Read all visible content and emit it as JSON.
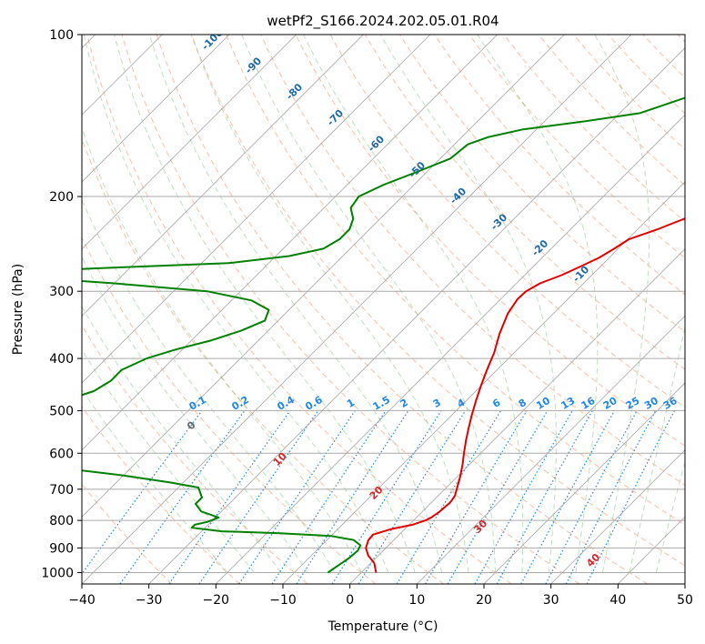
{
  "chart_data": {
    "type": "line",
    "chart_kind": "skew-t log-p",
    "title": "wetPf2_S166.2024.202.05.01.R04",
    "xlabel": "Temperature (°C)",
    "ylabel": "Pressure (hPa)",
    "xlim": [
      -40,
      50
    ],
    "ylim": [
      1050,
      100
    ],
    "y_scale": "log",
    "grid": true,
    "x_ticks": [
      "−40",
      "−30",
      "−20",
      "−10",
      "0",
      "10",
      "20",
      "30",
      "40",
      "50"
    ],
    "y_ticks": [
      "100",
      "200",
      "300",
      "400",
      "500",
      "600",
      "700",
      "800",
      "900",
      "1000"
    ],
    "series": [
      {
        "name": "",
        "color": "#e00000",
        "points": [
          [
            2.2,
            1000
          ],
          [
            0.5,
            960
          ],
          [
            -1.5,
            930
          ],
          [
            -3.0,
            900
          ],
          [
            -3.8,
            870
          ],
          [
            -3.9,
            850
          ],
          [
            -2.0,
            830
          ],
          [
            0.5,
            815
          ],
          [
            1.8,
            800
          ],
          [
            2.2,
            790
          ],
          [
            2.6,
            770
          ],
          [
            2.8,
            740
          ],
          [
            2.5,
            720
          ],
          [
            1.8,
            700
          ],
          [
            0.5,
            665
          ],
          [
            -1.0,
            630
          ],
          [
            -2.5,
            600
          ],
          [
            -4.0,
            570
          ],
          [
            -5.5,
            540
          ],
          [
            -7.0,
            510
          ],
          [
            -8.5,
            480
          ],
          [
            -10.0,
            450
          ],
          [
            -11.5,
            420
          ],
          [
            -13.0,
            390
          ],
          [
            -15.0,
            360
          ],
          [
            -16.8,
            330
          ],
          [
            -17.5,
            310
          ],
          [
            -17.4,
            300
          ],
          [
            -16.5,
            290
          ],
          [
            -14.5,
            280
          ],
          [
            -13.0,
            270
          ],
          [
            -11.5,
            260
          ],
          [
            -10.6,
            250
          ],
          [
            -9.8,
            240
          ],
          [
            -7.0,
            230
          ],
          [
            -4.6,
            220
          ],
          [
            -2.2,
            210
          ],
          [
            0.0,
            200
          ],
          [
            1.5,
            190
          ],
          [
            3.2,
            180
          ],
          [
            5.2,
            170
          ],
          [
            7.6,
            160
          ],
          [
            10.0,
            150
          ],
          [
            12.0,
            140
          ],
          [
            13.5,
            130
          ],
          [
            14.8,
            120
          ],
          [
            16.2,
            110
          ],
          [
            17.8,
            100
          ]
        ]
      },
      {
        "name": "",
        "color": "#008000",
        "points": [
          [
            -5.0,
            1000
          ],
          [
            -4.5,
            970
          ],
          [
            -4.0,
            940
          ],
          [
            -3.8,
            910
          ],
          [
            -4.2,
            890
          ],
          [
            -6.0,
            870
          ],
          [
            -10.0,
            855
          ],
          [
            -18.0,
            845
          ],
          [
            -27.0,
            838
          ],
          [
            -32.0,
            825
          ],
          [
            -32.0,
            815
          ],
          [
            -30.5,
            805
          ],
          [
            -29.5,
            790
          ],
          [
            -33.0,
            770
          ],
          [
            -35.0,
            745
          ],
          [
            -35.0,
            725
          ],
          [
            -36.0,
            710
          ],
          [
            -37.0,
            695
          ],
          [
            -42.0,
            680
          ],
          [
            -50.0,
            660
          ],
          [
            -60.0,
            640
          ],
          [
            -75.0,
            620
          ],
          [
            -95.0,
            590
          ],
          [
            -110.0,
            570
          ],
          [
            -100.0,
            560
          ],
          [
            -89.0,
            550
          ],
          [
            -83.0,
            530
          ],
          [
            -77.0,
            505
          ],
          [
            -70.0,
            480
          ],
          [
            -67.0,
            460
          ],
          [
            -66.0,
            440
          ],
          [
            -66.0,
            420
          ],
          [
            -64.0,
            400
          ],
          [
            -61.0,
            385
          ],
          [
            -57.0,
            370
          ],
          [
            -54.0,
            355
          ],
          [
            -52.0,
            340
          ],
          [
            -53.0,
            325
          ],
          [
            -57.0,
            312
          ],
          [
            -65.0,
            300
          ],
          [
            -80.0,
            290
          ],
          [
            -95.0,
            282
          ],
          [
            -100.0,
            278
          ],
          [
            -85.0,
            272
          ],
          [
            -66.0,
            266
          ],
          [
            -58.0,
            258
          ],
          [
            -54.0,
            250
          ],
          [
            -53.0,
            240
          ],
          [
            -53.0,
            230
          ],
          [
            -54.0,
            220
          ],
          [
            -56.0,
            210
          ],
          [
            -56.5,
            200
          ],
          [
            -54.5,
            190
          ],
          [
            -51.5,
            180
          ],
          [
            -48.5,
            170
          ],
          [
            -48.0,
            160
          ],
          [
            -46.0,
            155
          ],
          [
            -42.0,
            150
          ],
          [
            -34.0,
            145
          ],
          [
            -27.0,
            140
          ],
          [
            -22.0,
            130
          ],
          [
            -17.0,
            120
          ],
          [
            -11.0,
            110
          ],
          [
            -6.0,
            105
          ],
          [
            -1.0,
            100
          ]
        ]
      }
    ],
    "mixing_ratio_labels": [
      "0.1",
      "0.2",
      "0.4",
      "0.6",
      "1",
      "1.5",
      "2",
      "3",
      "4",
      "6",
      "8",
      "10",
      "13",
      "16",
      "20",
      "25",
      "30",
      "36"
    ],
    "mixing_ratio_values": [
      0.1,
      0.2,
      0.4,
      0.6,
      1,
      1.5,
      2,
      3,
      4,
      6,
      8,
      10,
      13,
      16,
      20,
      25,
      30,
      36
    ],
    "saturation_labels": [
      "-100",
      "-90",
      "-80",
      "-70",
      "-60",
      "-50",
      "-40",
      "-30",
      "-20",
      "-10"
    ],
    "dry_adiabat_labels": [
      "0",
      "10",
      "20",
      "30",
      "40"
    ]
  }
}
